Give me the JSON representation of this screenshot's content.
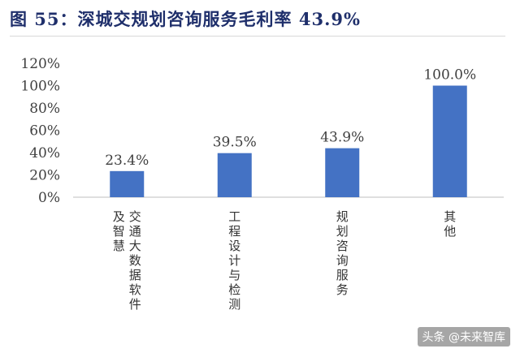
{
  "title": "图 55：深城交规划咨询服务毛利率 43.9%",
  "watermark": "头条 @未来智库",
  "colors": {
    "bar": "#4472c4",
    "title": "#1f2f6b",
    "text": "#404040"
  },
  "chart_data": {
    "type": "bar",
    "categories": [
      "交通大数据软件及智慧",
      "工程设计与检测",
      "规划咨询服务",
      "其他"
    ],
    "values": [
      23.4,
      39.5,
      43.9,
      100.0
    ],
    "data_labels": [
      "23.4%",
      "39.5%",
      "43.9%",
      "100.0%"
    ],
    "yticks": [
      "0%",
      "20%",
      "40%",
      "60%",
      "80%",
      "100%",
      "120%"
    ],
    "ylim": [
      0,
      120
    ],
    "title": "",
    "xlabel": "",
    "ylabel": "",
    "grid": false
  }
}
